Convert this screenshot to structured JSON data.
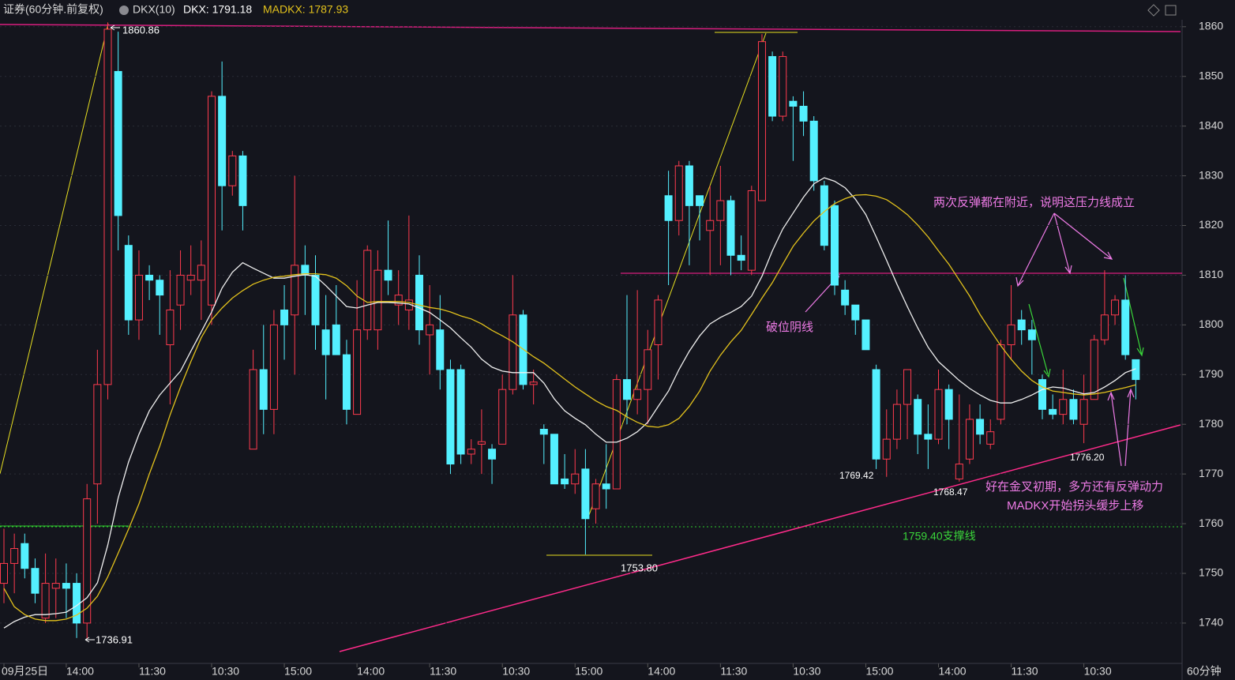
{
  "chart_data": {
    "type": "candlestick",
    "header": {
      "symbol": "证券(60分钟.前复权)",
      "indicator": "DKX(10)",
      "dkx_label": "DKX: 1791.18",
      "madkx_label": "MADKX: 1787.93"
    },
    "period_label": "60分钟",
    "up_color": "#ff3b4e",
    "down_color": "#54f0ff",
    "grid": true,
    "ylim": [
      1732.2,
      1861.4
    ],
    "yticks": [
      1740,
      1750,
      1760,
      1770,
      1780,
      1790,
      1800,
      1810,
      1820,
      1830,
      1840,
      1850,
      1860
    ],
    "categories": [
      "09月25日",
      null,
      null,
      null,
      null,
      null,
      "14:00",
      null,
      null,
      null,
      null,
      null,
      null,
      "11:30",
      null,
      null,
      null,
      null,
      null,
      null,
      "10:30",
      null,
      null,
      null,
      null,
      null,
      null,
      "15:00",
      null,
      null,
      null,
      null,
      null,
      null,
      "14:00",
      null,
      null,
      null,
      null,
      null,
      null,
      "11:30",
      null,
      null,
      null,
      null,
      null,
      null,
      "10:30",
      null,
      null,
      null,
      null,
      null,
      null,
      "15:00",
      null,
      null,
      null,
      null,
      null,
      null,
      "14:00",
      null,
      null,
      null,
      null,
      null,
      null,
      "11:30",
      null,
      null,
      null,
      null,
      null,
      null,
      "10:30",
      null,
      null,
      null,
      null,
      null,
      null,
      "15:00",
      null,
      null,
      null,
      null,
      null,
      null,
      "14:00",
      null,
      null,
      null,
      null,
      null,
      null,
      "11:30",
      null,
      null,
      null,
      null,
      null,
      null,
      "10:30",
      null,
      null,
      null,
      null,
      null
    ],
    "open": [
      1748,
      1752,
      1756,
      1751,
      1741,
      1747,
      1748,
      1748,
      1740,
      1768,
      1788,
      1851,
      1816,
      1801,
      1810,
      1809,
      1796,
      1804,
      1809,
      1809,
      1804,
      1846,
      1828,
      1834,
      1775,
      1791,
      1783,
      1803,
      1802,
      1812,
      1810,
      1799,
      1800,
      1794,
      1782,
      1799,
      1799,
      1811,
      1804,
      1803,
      1810,
      1798,
      1799,
      1791,
      1791,
      1774,
      1776,
      1775,
      1776,
      1787,
      1802,
      1788,
      1779,
      1778,
      1769,
      1768,
      1771,
      1763,
      1768,
      1767,
      1789,
      1785,
      1787,
      1796,
      1826,
      1821,
      1832,
      1826,
      1819,
      1821,
      1825,
      1814,
      1811,
      1825,
      1854,
      1842,
      1845,
      1844,
      1841,
      1828,
      1824,
      1807,
      1804,
      1801,
      1791,
      1773,
      1777,
      1784,
      1785,
      1778,
      1777,
      1787,
      1769,
      1773,
      1781,
      1776,
      1781,
      1796,
      1801,
      1799,
      1789,
      1783,
      1782,
      1785,
      1780,
      1785,
      1797,
      1802,
      1805,
      1793
    ],
    "high": [
      1759,
      1758,
      1758,
      1753,
      1754,
      1753,
      1752,
      1750,
      1768,
      1795,
      1860.86,
      1859,
      1818,
      1815,
      1812,
      1810,
      1811,
      1815,
      1816,
      1817,
      1847,
      1853,
      1835,
      1835,
      1795,
      1800,
      1803,
      1808,
      1830,
      1816,
      1814,
      1806,
      1808,
      1797,
      1809,
      1816,
      1815,
      1821,
      1811,
      1822,
      1814,
      1808,
      1806,
      1793,
      1792,
      1777,
      1783,
      1776,
      1790,
      1810,
      1803,
      1791,
      1780,
      1778,
      1774,
      1775,
      1775,
      1769,
      1776,
      1790,
      1806,
      1807,
      1799,
      1806,
      1831,
      1833,
      1833,
      1826,
      1828,
      1832,
      1826,
      1818,
      1828,
      1858.5,
      1855,
      1855,
      1846,
      1847,
      1842,
      1829,
      1825,
      1809,
      1804,
      1801,
      1792,
      1783,
      1787,
      1791,
      1786,
      1784,
      1791,
      1788,
      1786,
      1784,
      1784,
      1781,
      1797,
      1808,
      1803,
      1801,
      1790,
      1786,
      1791,
      1787,
      1790,
      1798,
      1811,
      1806,
      1810,
      1793
    ],
    "low": [
      1744,
      1746,
      1749,
      1744,
      1740,
      1741,
      1741,
      1737,
      1736.91,
      1760,
      1785,
      1815,
      1798,
      1797,
      1805,
      1798,
      1784,
      1799,
      1806,
      1801,
      1800,
      1819,
      1826,
      1819,
      1775,
      1778,
      1778,
      1793,
      1790,
      1802,
      1795,
      1785,
      1794,
      1780,
      1782,
      1797,
      1795,
      1806,
      1800,
      1799,
      1796,
      1790,
      1787,
      1770,
      1772,
      1772,
      1770,
      1768,
      1776,
      1786,
      1787,
      1784,
      1772,
      1768,
      1767,
      1766,
      1753.8,
      1760,
      1763,
      1767,
      1780,
      1782,
      1780,
      1789,
      1808,
      1818,
      1812,
      1817,
      1810,
      1812,
      1810,
      1811,
      1810,
      1825,
      1841,
      1841,
      1833,
      1838,
      1827,
      1815,
      1806,
      1802,
      1798,
      1795,
      1771,
      1769.42,
      1775,
      1777,
      1774,
      1771,
      1776,
      1775,
      1768.47,
      1772,
      1776,
      1775,
      1780,
      1793,
      1796,
      1790,
      1781,
      1781,
      1780,
      1780,
      1776.2,
      1785,
      1796,
      1800,
      1793,
      1785
    ],
    "close": [
      1752,
      1755,
      1751,
      1746,
      1748,
      1748,
      1747,
      1740,
      1765,
      1788,
      1859.5,
      1822,
      1801,
      1810,
      1809,
      1806,
      1803,
      1810,
      1810,
      1812,
      1846,
      1828,
      1834,
      1824,
      1791,
      1783,
      1800,
      1800,
      1812,
      1810,
      1800,
      1794,
      1794,
      1783,
      1799,
      1815,
      1811,
      1809,
      1806,
      1805,
      1799,
      1800,
      1791,
      1772,
      1774,
      1775,
      1776.5,
      1773,
      1787,
      1802,
      1788,
      1788.5,
      1778,
      1768,
      1768,
      1770,
      1761,
      1768,
      1767,
      1789,
      1785,
      1787,
      1795,
      1805,
      1821,
      1832,
      1824,
      1824,
      1821,
      1825,
      1814,
      1813,
      1827,
      1857,
      1842,
      1854,
      1844,
      1841,
      1829,
      1816,
      1808,
      1804,
      1801,
      1795,
      1773,
      1777,
      1784,
      1791,
      1778,
      1777,
      1787,
      1781,
      1772,
      1781,
      1778,
      1778.5,
      1796,
      1800,
      1799,
      1797,
      1783,
      1782,
      1785,
      1781,
      1785,
      1797,
      1802,
      1805,
      1794,
      1789
    ],
    "series": [
      {
        "name": "DKX",
        "color": "#f0f0f0",
        "values": [
          1739.0,
          1740.3,
          1741.2,
          1741.7,
          1741.7,
          1741.9,
          1742.2,
          1743.5,
          1745.1,
          1748.1,
          1755.7,
          1765.2,
          1772.4,
          1778.0,
          1782.7,
          1785.9,
          1788.3,
          1790.7,
          1794.7,
          1798.6,
          1802.6,
          1807.4,
          1810.6,
          1812.5,
          1811.4,
          1810.4,
          1809.4,
          1809.4,
          1809.8,
          1810.1,
          1809.8,
          1807.9,
          1805.8,
          1803.7,
          1803.4,
          1804.0,
          1804.5,
          1804.5,
          1804.4,
          1804.2,
          1803.4,
          1802.5,
          1801.0,
          1799.4,
          1797.4,
          1795.5,
          1793.1,
          1791.5,
          1790.7,
          1790.4,
          1790.4,
          1790.4,
          1788.3,
          1785.1,
          1782.7,
          1781.2,
          1779.9,
          1778.0,
          1776.4,
          1776.4,
          1777.2,
          1778.5,
          1780.4,
          1783.6,
          1786.7,
          1791.0,
          1794.7,
          1797.8,
          1800.2,
          1801.5,
          1802.5,
          1803.7,
          1805.8,
          1809.8,
          1814.9,
          1819.3,
          1822.5,
          1825.7,
          1828.4,
          1829.6,
          1828.9,
          1827.6,
          1825.3,
          1822.2,
          1817.7,
          1813.0,
          1808.2,
          1803.7,
          1799.4,
          1795.5,
          1792.6,
          1790.7,
          1788.8,
          1787.2,
          1785.9,
          1784.8,
          1784.3,
          1784.3,
          1785.0,
          1785.9,
          1787.0,
          1787.5,
          1787.3,
          1786.7,
          1786.1,
          1786.4,
          1787.5,
          1788.8,
          1790.4,
          1791.18
        ]
      },
      {
        "name": "MADKX",
        "color": "#e3c21c",
        "values": [
          1747.0,
          1743.3,
          1741.7,
          1740.8,
          1740.5,
          1740.5,
          1740.8,
          1741.6,
          1743.0,
          1745.4,
          1749.3,
          1754.1,
          1758.9,
          1764.0,
          1770.0,
          1775.6,
          1781.9,
          1787.5,
          1792.6,
          1797.4,
          1801.0,
          1803.4,
          1805.4,
          1806.9,
          1808.2,
          1809.0,
          1809.6,
          1809.8,
          1810.1,
          1810.3,
          1810.3,
          1810.1,
          1809.4,
          1807.9,
          1805.8,
          1804.5,
          1804.7,
          1804.7,
          1804.7,
          1804.5,
          1804.0,
          1803.5,
          1803.2,
          1802.6,
          1801.8,
          1801.2,
          1800.2,
          1798.9,
          1797.8,
          1796.6,
          1795.1,
          1793.6,
          1792.3,
          1790.7,
          1789.1,
          1787.5,
          1786.1,
          1784.7,
          1783.6,
          1782.8,
          1781.5,
          1780.4,
          1779.6,
          1779.4,
          1779.9,
          1781.2,
          1783.6,
          1786.7,
          1790.7,
          1793.9,
          1796.6,
          1798.9,
          1802.1,
          1805.4,
          1808.5,
          1812.2,
          1815.8,
          1818.5,
          1820.9,
          1822.8,
          1824.4,
          1825.4,
          1826.1,
          1826.2,
          1825.9,
          1825.2,
          1823.8,
          1822.2,
          1820.1,
          1817.7,
          1814.9,
          1812.2,
          1809.0,
          1805.8,
          1802.1,
          1798.9,
          1795.8,
          1793.1,
          1790.7,
          1788.8,
          1787.5,
          1786.7,
          1786.4,
          1786.1,
          1785.9,
          1786.1,
          1786.4,
          1786.9,
          1787.4,
          1787.93
        ]
      }
    ],
    "annotations": {
      "breakdown": "破位阴线",
      "pressure": "两次反弹都在附近，说明这压力线成立",
      "golden_cross": "好在金叉初期，多方还有反弹动力",
      "madkx_turn": "MADKX开始拐头缓步上移",
      "support": "1759.40支撑线"
    },
    "price_labels": [
      "1860.86",
      "1736.91",
      "1753.80",
      "1769.42",
      "1768.47",
      "1776.20"
    ]
  }
}
